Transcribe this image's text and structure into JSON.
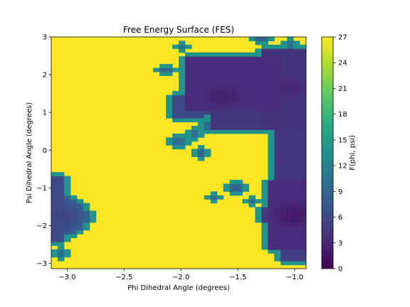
{
  "chart_data": {
    "type": "heatmap",
    "title": "Free Energy Surface (FES)",
    "xlabel": "Phi Dihedral Angle (degrees)",
    "ylabel": "Psi Dihedral Angle (degrees)",
    "colorbar_label": "F(phi, psi)",
    "colormap": "viridis",
    "xlim": [
      -3.14,
      -0.9
    ],
    "ylim": [
      -3.14,
      3.0
    ],
    "clim": [
      0,
      27
    ],
    "x_ticks": [
      -3.0,
      -2.5,
      -2.0,
      -1.5,
      -1.0
    ],
    "x_tick_labels": [
      "−3.0",
      "−2.5",
      "−2.0",
      "−1.5",
      "−1.0"
    ],
    "y_ticks": [
      -3,
      -2,
      -1,
      0,
      1,
      2,
      3
    ],
    "y_tick_labels": [
      "−3",
      "−2",
      "−1",
      "0",
      "1",
      "2",
      "3"
    ],
    "colorbar_ticks": [
      0,
      3,
      6,
      9,
      12,
      15,
      18,
      21,
      24,
      27
    ],
    "colorbar_tick_labels": [
      "0",
      "3",
      "6",
      "9",
      "12",
      "15",
      "18",
      "21",
      "24",
      "27"
    ],
    "background_value": 27,
    "basins": [
      {
        "phi": -1.63,
        "psi": 1.45,
        "value": 2.5
      },
      {
        "phi": -1.05,
        "psi": 1.65,
        "value": 3.0
      },
      {
        "phi": -1.0,
        "psi": -1.7,
        "value": 2.0
      },
      {
        "phi": -3.1,
        "psi": -1.75,
        "value": 5.5
      }
    ],
    "regions": [
      {
        "phi_range": [
          -1.95,
          -1.15
        ],
        "psi_range": [
          1.05,
          2.45
        ],
        "value": 3.5
      },
      {
        "phi_range": [
          -1.75,
          -1.0
        ],
        "psi_range": [
          0.5,
          1.6
        ],
        "value": 4.5
      },
      {
        "phi_range": [
          -1.3,
          -0.92
        ],
        "psi_range": [
          0.5,
          2.7
        ],
        "value": 4.0
      },
      {
        "phi_range": [
          -1.2,
          -0.92
        ],
        "psi_range": [
          -0.8,
          0.6
        ],
        "value": 4.5
      },
      {
        "phi_range": [
          -1.25,
          -0.92
        ],
        "psi_range": [
          -2.6,
          -0.8
        ],
        "value": 3.5
      },
      {
        "phi_range": [
          -1.1,
          -0.92
        ],
        "psi_range": [
          -2.9,
          -2.55
        ],
        "value": 5.0
      },
      {
        "phi_range": [
          -2.08,
          -1.78
        ],
        "psi_range": [
          0.9,
          1.5
        ],
        "value": 6.0
      },
      {
        "phi_range": [
          -3.14,
          -3.05
        ],
        "psi_range": [
          -2.45,
          -0.7
        ],
        "value": 6.0
      }
    ],
    "isolated_cells": [
      {
        "phi": -1.72,
        "psi": -1.25,
        "value": 10
      },
      {
        "phi": -1.52,
        "psi": -1.0,
        "value": 9
      },
      {
        "phi": -1.38,
        "psi": -1.35,
        "value": 9
      },
      {
        "phi": -2.03,
        "psi": 0.25,
        "value": 10
      },
      {
        "phi": -1.88,
        "psi": 0.45,
        "value": 10
      },
      {
        "phi": -2.12,
        "psi": 2.15,
        "value": 9
      },
      {
        "phi": -2.0,
        "psi": 2.75,
        "value": 10
      },
      {
        "phi": -1.3,
        "psi": 3.0,
        "value": 9
      },
      {
        "phi": -1.05,
        "psi": 2.8,
        "value": 10
      },
      {
        "phi": -3.07,
        "psi": -2.75,
        "value": 10
      },
      {
        "phi": -1.75,
        "psi": 0.65,
        "value": 9
      },
      {
        "phi": -1.82,
        "psi": -0.05,
        "value": 9
      }
    ]
  }
}
